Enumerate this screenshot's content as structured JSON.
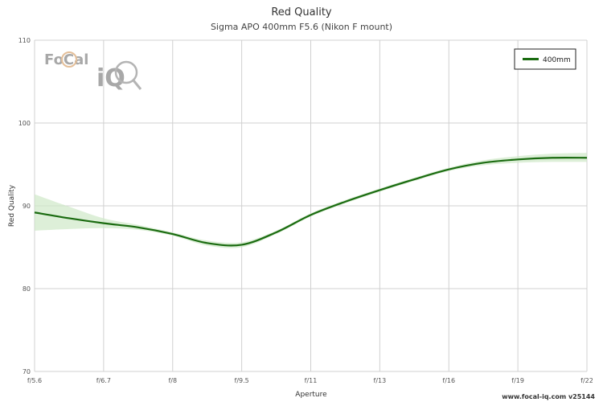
{
  "chart_data": {
    "type": "line",
    "title": "Red Quality",
    "subtitle": "Sigma APO 400mm F5.6 (Nikon F mount)",
    "xlabel": "Aperture",
    "ylabel": "Red Quality",
    "categories": [
      "f/5.6",
      "f/6.7",
      "f/8",
      "f/9.5",
      "f/11",
      "f/13",
      "f/16",
      "f/19",
      "f/22"
    ],
    "ylim": [
      70,
      110
    ],
    "yticks": [
      70,
      80,
      90,
      100,
      110
    ],
    "grid": true,
    "legend_position": "top-right",
    "series": [
      {
        "name": "400mm",
        "color": "#1a6b10",
        "band_color": "#cfe8c8",
        "points": [
          {
            "x": 0.0,
            "y": 89.2,
            "lo": 87.0,
            "hi": 91.4
          },
          {
            "x": 0.5,
            "y": 88.5,
            "lo": 87.2,
            "hi": 89.9
          },
          {
            "x": 1.0,
            "y": 87.9,
            "lo": 87.3,
            "hi": 88.5
          },
          {
            "x": 1.5,
            "y": 87.4,
            "lo": 87.1,
            "hi": 87.7
          },
          {
            "x": 2.0,
            "y": 86.6,
            "lo": 86.4,
            "hi": 86.8
          },
          {
            "x": 2.5,
            "y": 85.5,
            "lo": 85.2,
            "hi": 85.8
          },
          {
            "x": 3.0,
            "y": 85.3,
            "lo": 85.0,
            "hi": 85.6
          },
          {
            "x": 3.5,
            "y": 86.8,
            "lo": 86.6,
            "hi": 87.0
          },
          {
            "x": 4.0,
            "y": 88.9,
            "lo": 88.7,
            "hi": 89.1
          },
          {
            "x": 4.5,
            "y": 90.5,
            "lo": 90.3,
            "hi": 90.7
          },
          {
            "x": 5.0,
            "y": 91.9,
            "lo": 91.7,
            "hi": 92.1
          },
          {
            "x": 5.5,
            "y": 93.2,
            "lo": 93.0,
            "hi": 93.4
          },
          {
            "x": 6.0,
            "y": 94.4,
            "lo": 94.2,
            "hi": 94.6
          },
          {
            "x": 6.5,
            "y": 95.2,
            "lo": 94.9,
            "hi": 95.5
          },
          {
            "x": 7.0,
            "y": 95.6,
            "lo": 95.2,
            "hi": 96.0
          },
          {
            "x": 7.5,
            "y": 95.8,
            "lo": 95.3,
            "hi": 96.3
          },
          {
            "x": 8.0,
            "y": 95.8,
            "lo": 95.3,
            "hi": 96.4
          }
        ]
      }
    ]
  },
  "logo": {
    "text_top": "FoCal",
    "text_bottom": "iQ"
  },
  "credit": "www.focal-iq.com  v25144"
}
